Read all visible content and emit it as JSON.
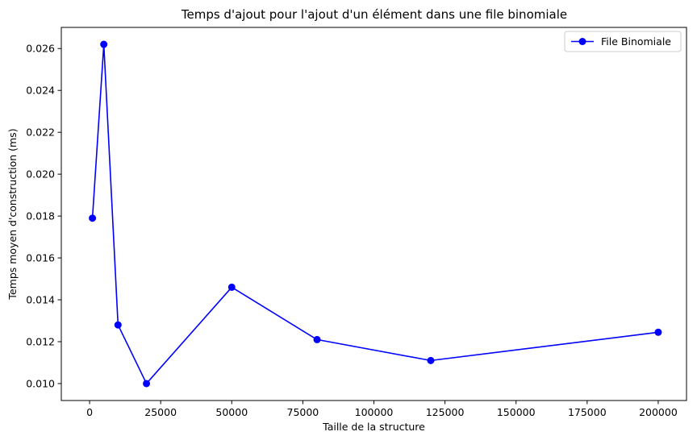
{
  "chart_data": {
    "type": "line",
    "title": "Temps d'ajout pour l'ajout d'un élément dans une file binomiale",
    "xlabel": "Taille de la structure",
    "ylabel": "Temps moyen d'construction (ms)",
    "xlim": [
      -9950,
      209950
    ],
    "ylim": [
      0.00919,
      0.02701
    ],
    "x_ticks": [
      0,
      25000,
      50000,
      75000,
      100000,
      125000,
      150000,
      175000,
      200000
    ],
    "y_ticks": [
      0.01,
      0.012,
      0.014,
      0.016,
      0.018,
      0.02,
      0.022,
      0.024,
      0.026
    ],
    "grid": false,
    "legend_position": "top-right",
    "series": [
      {
        "name": "File Binomiale",
        "color": "#0000ff",
        "marker": "circle",
        "x": [
          1000,
          5000,
          10000,
          20000,
          50000,
          80000,
          120000,
          200000
        ],
        "y": [
          0.0179,
          0.0262,
          0.0128,
          0.01,
          0.0146,
          0.0121,
          0.0111,
          0.01245
        ]
      }
    ]
  }
}
